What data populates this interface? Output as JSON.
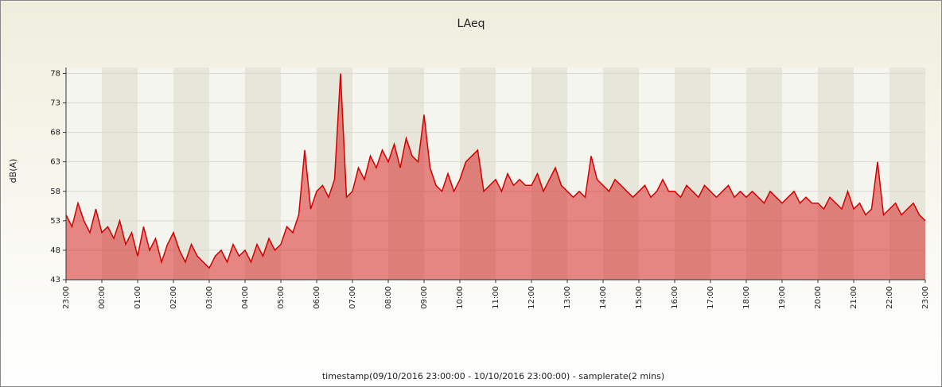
{
  "chart_data": {
    "type": "area",
    "title": "LAeq",
    "y_label": "dB(A)",
    "x_label": "timestamp(09/10/2016 23:00:00 - 10/10/2016 23:00:00) - samplerate(2 mins)",
    "color": "#d40000",
    "grid": true,
    "ylim": [
      43,
      79
    ],
    "yticks": [
      43,
      48,
      53,
      58,
      63,
      68,
      73,
      78
    ],
    "categories": [
      "23:00",
      null,
      null,
      null,
      null,
      null,
      "00:00",
      null,
      null,
      null,
      null,
      null,
      "01:00",
      null,
      null,
      null,
      null,
      null,
      "02:00",
      null,
      null,
      null,
      null,
      null,
      "03:00",
      null,
      null,
      null,
      null,
      null,
      "04:00",
      null,
      null,
      null,
      null,
      null,
      "05:00",
      null,
      null,
      null,
      null,
      null,
      "06:00",
      null,
      null,
      null,
      null,
      null,
      "07:00",
      null,
      null,
      null,
      null,
      null,
      "08:00",
      null,
      null,
      null,
      null,
      null,
      "09:00",
      null,
      null,
      null,
      null,
      null,
      "10:00",
      null,
      null,
      null,
      null,
      null,
      "11:00",
      null,
      null,
      null,
      null,
      null,
      "12:00",
      null,
      null,
      null,
      null,
      null,
      "13:00",
      null,
      null,
      null,
      null,
      null,
      "14:00",
      null,
      null,
      null,
      null,
      null,
      "15:00",
      null,
      null,
      null,
      null,
      null,
      "16:00",
      null,
      null,
      null,
      null,
      null,
      "17:00",
      null,
      null,
      null,
      null,
      null,
      "18:00",
      null,
      null,
      null,
      null,
      null,
      "19:00",
      null,
      null,
      null,
      null,
      null,
      "20:00",
      null,
      null,
      null,
      null,
      null,
      "21:00",
      null,
      null,
      null,
      null,
      null,
      "22:00",
      null,
      null,
      null,
      null,
      null,
      "23:00"
    ],
    "values": [
      54,
      52,
      56,
      53,
      51,
      55,
      51,
      52,
      50,
      53,
      49,
      51,
      47,
      52,
      48,
      50,
      46,
      49,
      51,
      48,
      46,
      49,
      47,
      46,
      45,
      47,
      48,
      46,
      49,
      47,
      48,
      46,
      49,
      47,
      50,
      48,
      49,
      52,
      51,
      54,
      65,
      55,
      58,
      59,
      57,
      60,
      78,
      57,
      58,
      62,
      60,
      64,
      62,
      65,
      63,
      66,
      62,
      67,
      64,
      63,
      71,
      62,
      59,
      58,
      61,
      58,
      60,
      63,
      64,
      65,
      58,
      59,
      60,
      58,
      61,
      59,
      60,
      59,
      59,
      61,
      58,
      60,
      62,
      59,
      58,
      57,
      58,
      57,
      64,
      60,
      59,
      58,
      60,
      59,
      58,
      57,
      58,
      59,
      57,
      58,
      60,
      58,
      58,
      57,
      59,
      58,
      57,
      59,
      58,
      57,
      58,
      59,
      57,
      58,
      57,
      58,
      57,
      56,
      58,
      57,
      56,
      57,
      58,
      56,
      57,
      56,
      56,
      55,
      57,
      56,
      55,
      58,
      55,
      56,
      54,
      55,
      63,
      54,
      55,
      56,
      54,
      55,
      56,
      54,
      53
    ]
  }
}
